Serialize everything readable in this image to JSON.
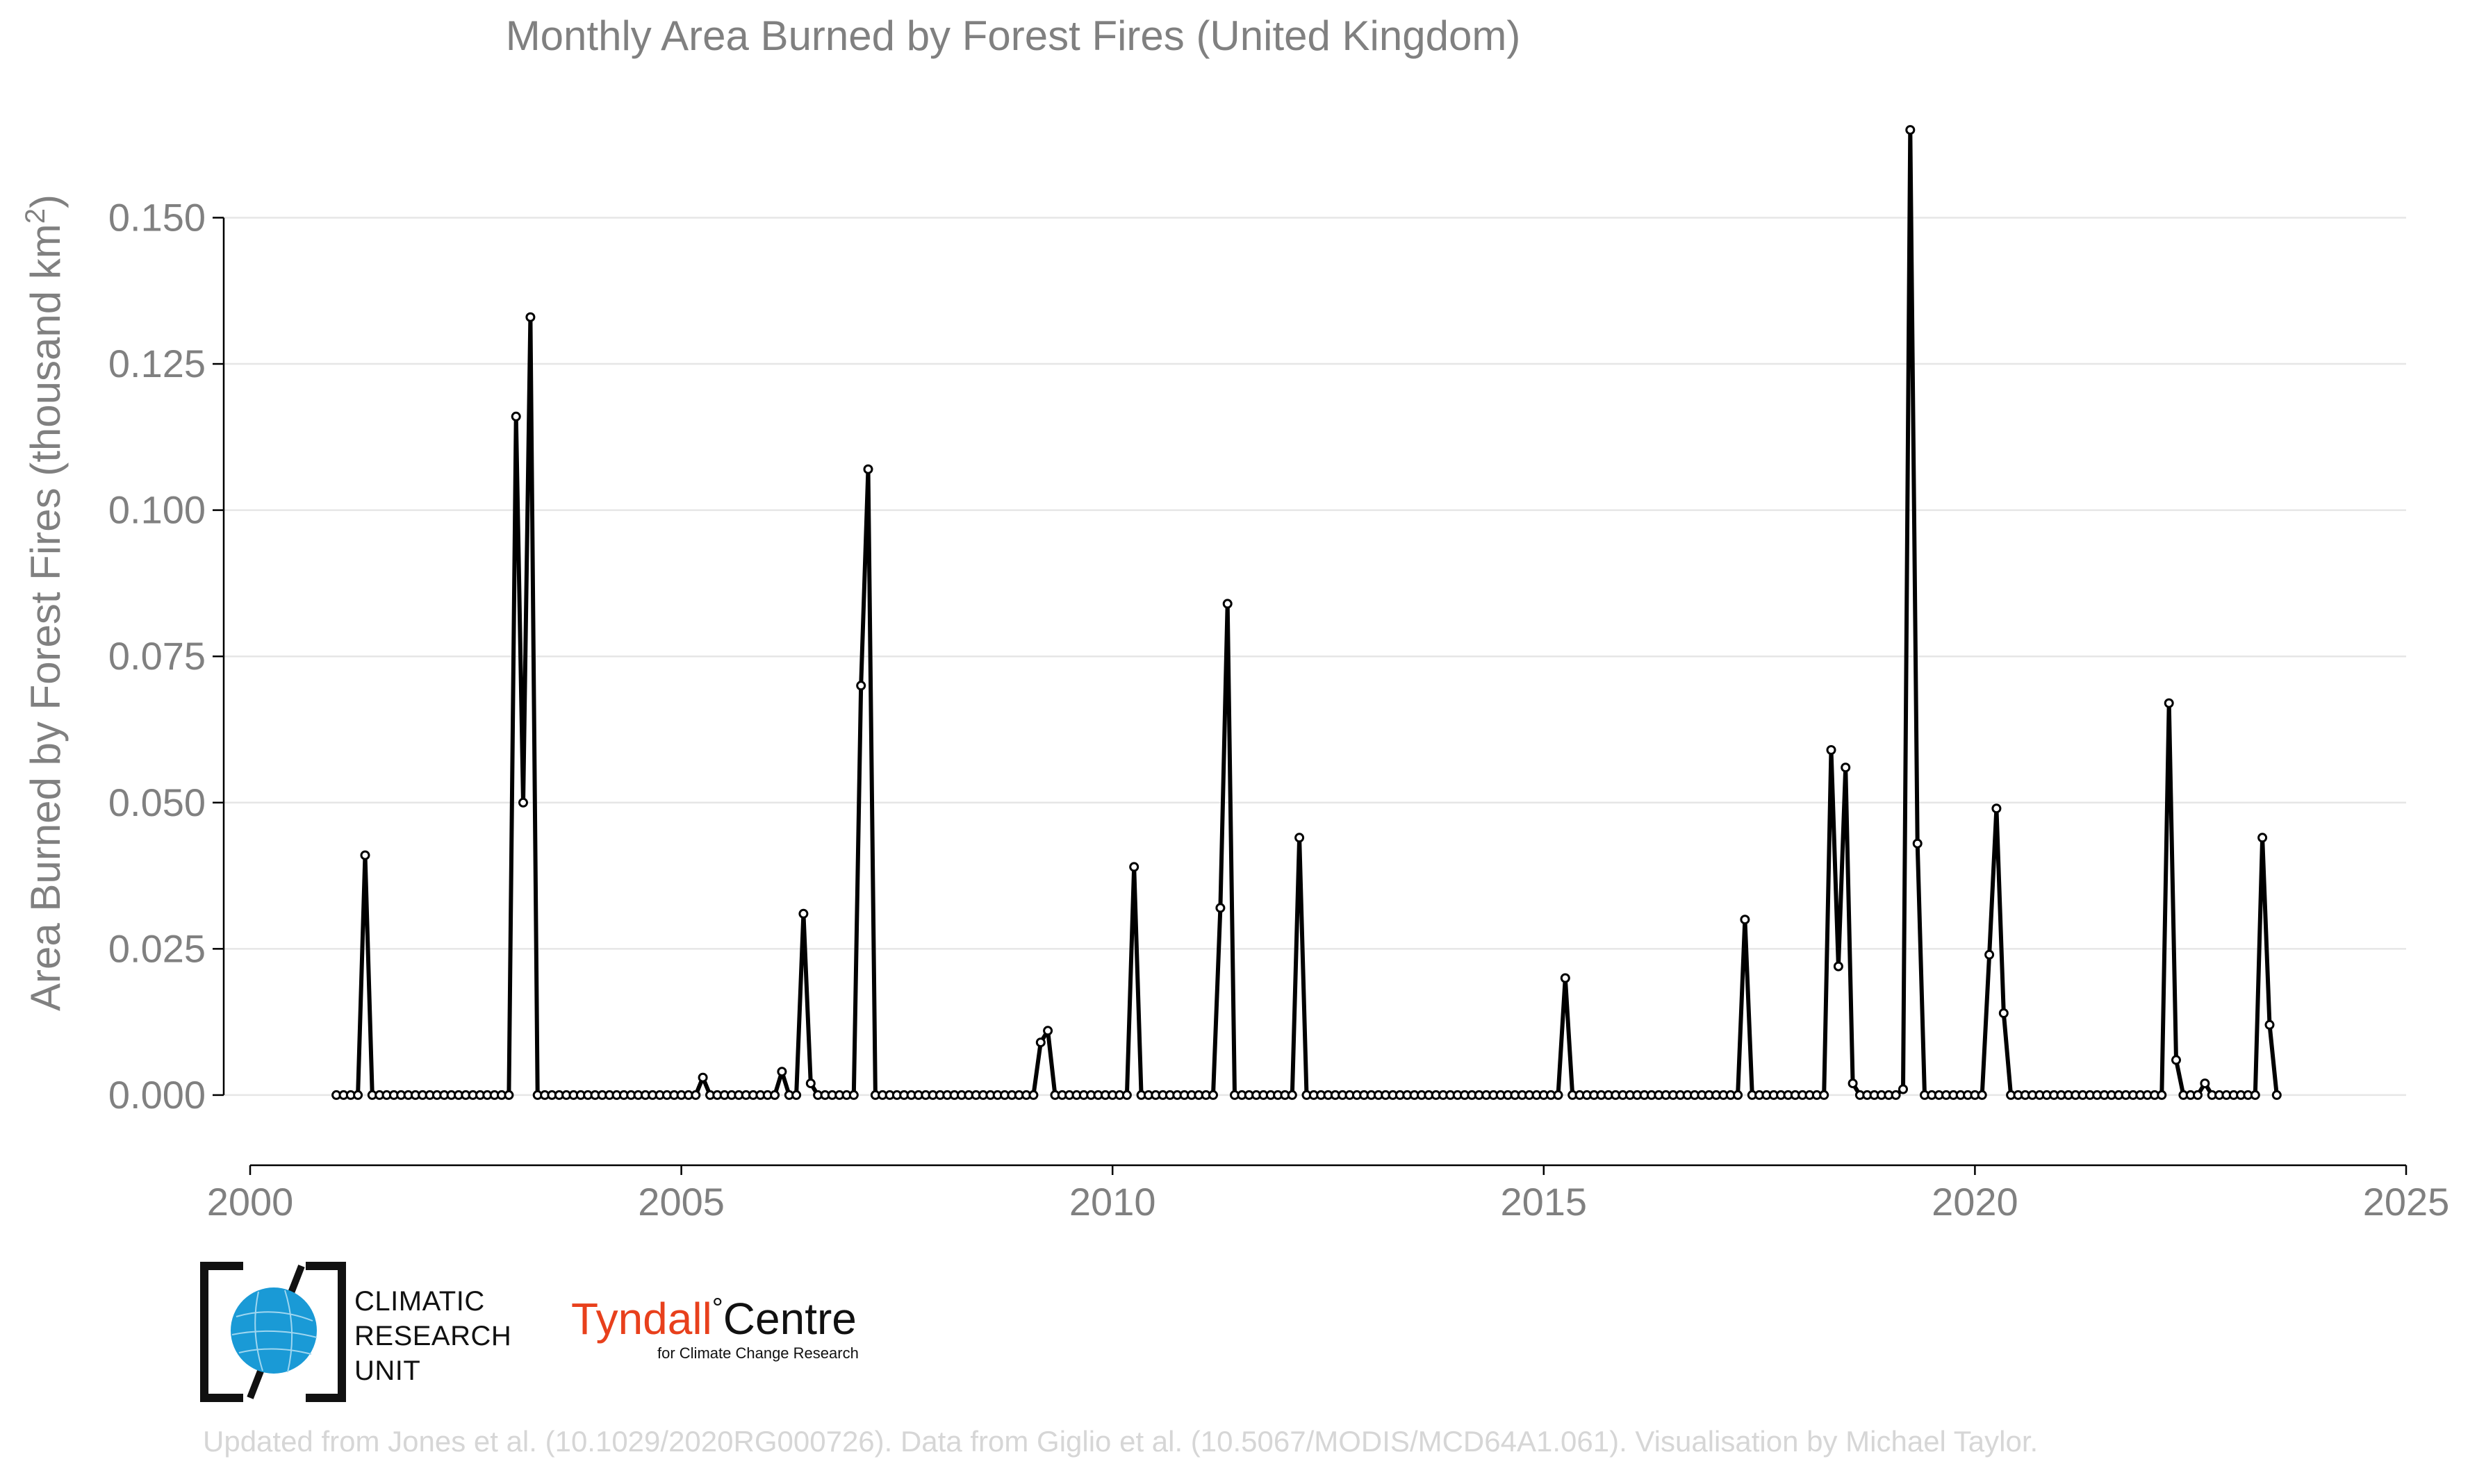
{
  "chart_data": {
    "type": "line",
    "title": "Monthly Area Burned by Forest Fires (United Kingdom)",
    "xlabel": "",
    "ylabel_main": "Area Burned by Forest Fires (thousand km",
    "ylabel_sup": "2",
    "ylabel_close": ")",
    "xlim": [
      2000,
      2025
    ],
    "ylim": [
      -0.012,
      0.17
    ],
    "x_ticks": [
      2000,
      2005,
      2010,
      2015,
      2020,
      2025
    ],
    "x_tick_labels": [
      "2000",
      "2005",
      "2010",
      "2015",
      "2020",
      "2025"
    ],
    "y_ticks": [
      0.0,
      0.025,
      0.05,
      0.075,
      0.1,
      0.125,
      0.15
    ],
    "y_tick_labels": [
      "0.000",
      "0.025",
      "0.050",
      "0.075",
      "0.100",
      "0.125",
      "0.150"
    ],
    "grid": true,
    "series": [
      {
        "name": "Monthly area burned",
        "start_year": 2001,
        "start_month": 1,
        "values": [
          0,
          0,
          0,
          0,
          0.041,
          0,
          0,
          0,
          0,
          0,
          0,
          0,
          0,
          0,
          0,
          0,
          0,
          0,
          0,
          0,
          0,
          0,
          0,
          0,
          0,
          0.116,
          0.05,
          0.133,
          0,
          0,
          0,
          0,
          0,
          0,
          0,
          0,
          0,
          0,
          0,
          0,
          0,
          0,
          0,
          0,
          0,
          0,
          0,
          0,
          0,
          0,
          0,
          0.003,
          0,
          0,
          0,
          0,
          0,
          0,
          0,
          0,
          0,
          0,
          0.004,
          0,
          0,
          0.031,
          0.002,
          0,
          0,
          0,
          0,
          0,
          0,
          0.07,
          0.107,
          0,
          0,
          0,
          0,
          0,
          0,
          0,
          0,
          0,
          0,
          0,
          0,
          0,
          0,
          0,
          0,
          0,
          0,
          0,
          0,
          0,
          0,
          0,
          0.009,
          0.011,
          0,
          0,
          0,
          0,
          0,
          0,
          0,
          0,
          0,
          0,
          0,
          0.039,
          0,
          0,
          0,
          0,
          0,
          0,
          0,
          0,
          0,
          0,
          0,
          0.032,
          0.084,
          0,
          0,
          0,
          0,
          0,
          0,
          0,
          0,
          0,
          0.044,
          0,
          0,
          0,
          0,
          0,
          0,
          0,
          0,
          0,
          0,
          0,
          0,
          0,
          0,
          0,
          0,
          0,
          0,
          0,
          0,
          0,
          0,
          0,
          0,
          0,
          0,
          0,
          0,
          0,
          0,
          0,
          0,
          0,
          0,
          0,
          0,
          0.02,
          0,
          0,
          0,
          0,
          0,
          0,
          0,
          0,
          0,
          0,
          0,
          0,
          0,
          0,
          0,
          0,
          0,
          0,
          0,
          0,
          0,
          0,
          0,
          0,
          0.03,
          0,
          0,
          0,
          0,
          0,
          0,
          0,
          0,
          0,
          0,
          0,
          0.059,
          0.022,
          0.056,
          0.002,
          0,
          0,
          0,
          0,
          0,
          0,
          0.001,
          0.165,
          0.043,
          0,
          0,
          0,
          0,
          0,
          0,
          0,
          0,
          0,
          0.024,
          0.049,
          0.014,
          0,
          0,
          0,
          0,
          0,
          0,
          0,
          0,
          0,
          0,
          0,
          0,
          0,
          0,
          0,
          0,
          0,
          0,
          0,
          0,
          0,
          0,
          0.067,
          0.006,
          0,
          0,
          0,
          0.002,
          0,
          0,
          0,
          0,
          0,
          0,
          0,
          0.044,
          0.012,
          0
        ]
      }
    ]
  },
  "footer": {
    "credit": "Updated from Jones et al. (10.1029/2020RG000726). Data from Giglio et al. (10.5067/MODIS/MCD64A1.061). Visualisation by Michael Taylor."
  },
  "logos": {
    "cru_line1": "CLIMATIC",
    "cru_line2": "RESEARCH",
    "cru_line3": "UNIT",
    "tyndall_part1": "Tyndall",
    "tyndall_degree": "°",
    "tyndall_part2": "Centre",
    "tyndall_sub": "for Climate Change Research"
  },
  "colors": {
    "line": "#000000",
    "text": "#808080",
    "grid": "#e6e6e6",
    "cru_globe": "#1a9ad6",
    "tyndall_red": "#e8401c"
  }
}
